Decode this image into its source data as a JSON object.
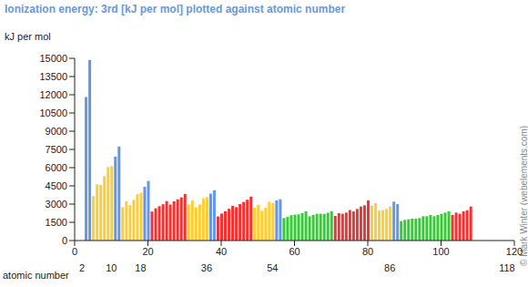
{
  "chart_data": {
    "type": "bar",
    "title": "Ionization energy: 3rd [kJ per mol] plotted against atomic number",
    "y_label": "kJ per mol",
    "x_label": "atomic number",
    "credit": "© Mark Winter (webelements.com)",
    "x": [
      3,
      4,
      5,
      6,
      7,
      8,
      9,
      10,
      11,
      12,
      13,
      14,
      15,
      16,
      17,
      18,
      19,
      20,
      21,
      22,
      23,
      24,
      25,
      26,
      27,
      28,
      29,
      30,
      31,
      32,
      33,
      34,
      35,
      36,
      37,
      38,
      39,
      40,
      41,
      42,
      43,
      44,
      45,
      46,
      47,
      48,
      49,
      50,
      51,
      52,
      53,
      54,
      55,
      56,
      57,
      58,
      59,
      60,
      61,
      62,
      63,
      64,
      65,
      66,
      67,
      68,
      69,
      70,
      71,
      72,
      73,
      74,
      75,
      76,
      77,
      78,
      79,
      80,
      81,
      82,
      83,
      84,
      85,
      86,
      87,
      88,
      89,
      90,
      91,
      92,
      93,
      94,
      95,
      96,
      97,
      98,
      99,
      100,
      101,
      102,
      103,
      104,
      105,
      106,
      107,
      108
    ],
    "values": [
      11815,
      14849,
      3660,
      4621,
      4578,
      5300,
      6050,
      6122,
      6910,
      7733,
      2745,
      3232,
      2912,
      3357,
      3822,
      3931,
      4420,
      4912,
      2389,
      2653,
      2828,
      2987,
      3248,
      2957,
      3232,
      3395,
      3555,
      3833,
      2963,
      3302,
      2735,
      2974,
      3470,
      3565,
      3860,
      4138,
      1980,
      2218,
      2416,
      2618,
      2850,
      2747,
      2997,
      3177,
      3361,
      3616,
      2704,
      2943,
      2440,
      2698,
      3180,
      3099,
      3300,
      3400,
      1850,
      1949,
      2086,
      2130,
      2150,
      2260,
      2404,
      1990,
      2114,
      2200,
      2204,
      2194,
      2285,
      2417,
      2022,
      2250,
      2200,
      2300,
      2510,
      2400,
      2600,
      2800,
      2900,
      3300,
      2878,
      3081,
      2466,
      2500,
      2600,
      2800,
      3200,
      3000,
      1600,
      1700,
      1750,
      1800,
      1800,
      1850,
      2000,
      2000,
      2100,
      2000,
      2100,
      2200,
      2300,
      2400,
      2100,
      2300,
      2200,
      2400,
      2500,
      2800
    ],
    "colors": [
      "#6495ed",
      "#6495ed",
      "#ffcc33",
      "#ffcc33",
      "#ffcc33",
      "#ffcc33",
      "#ffcc33",
      "#ffcc33",
      "#6495ed",
      "#6495ed",
      "#ffcc33",
      "#ffcc33",
      "#ffcc33",
      "#ffcc33",
      "#ffcc33",
      "#ffcc33",
      "#6495ed",
      "#6495ed",
      "#ee3333",
      "#ee3333",
      "#ee3333",
      "#ee3333",
      "#ee3333",
      "#ee3333",
      "#ee3333",
      "#ee3333",
      "#ee3333",
      "#ee3333",
      "#ffcc33",
      "#ffcc33",
      "#ffcc33",
      "#ffcc33",
      "#ffcc33",
      "#ffcc33",
      "#6495ed",
      "#6495ed",
      "#ee3333",
      "#ee3333",
      "#ee3333",
      "#ee3333",
      "#ee3333",
      "#ee3333",
      "#ee3333",
      "#ee3333",
      "#ee3333",
      "#ee3333",
      "#ffcc33",
      "#ffcc33",
      "#ffcc33",
      "#ffcc33",
      "#ffcc33",
      "#ffcc33",
      "#6495ed",
      "#6495ed",
      "#33cc33",
      "#33cc33",
      "#33cc33",
      "#33cc33",
      "#33cc33",
      "#33cc33",
      "#33cc33",
      "#33cc33",
      "#33cc33",
      "#33cc33",
      "#33cc33",
      "#33cc33",
      "#33cc33",
      "#33cc33",
      "#ee3333",
      "#ee3333",
      "#ee3333",
      "#ee3333",
      "#ee3333",
      "#ee3333",
      "#ee3333",
      "#ee3333",
      "#ee3333",
      "#ee3333",
      "#ffcc33",
      "#ffcc33",
      "#ffcc33",
      "#ffcc33",
      "#ffcc33",
      "#ffcc33",
      "#6495ed",
      "#6495ed",
      "#33cc33",
      "#33cc33",
      "#33cc33",
      "#33cc33",
      "#33cc33",
      "#33cc33",
      "#33cc33",
      "#33cc33",
      "#33cc33",
      "#33cc33",
      "#33cc33",
      "#33cc33",
      "#33cc33",
      "#33cc33",
      "#ee3333",
      "#ee3333",
      "#ee3333",
      "#ee3333",
      "#ee3333",
      "#ee3333"
    ],
    "xlim": [
      0,
      120
    ],
    "xticks": [
      0,
      2,
      10,
      18,
      20,
      36,
      40,
      54,
      60,
      80,
      86,
      100,
      118,
      120
    ],
    "ylim": [
      0,
      15000
    ],
    "yticks": [
      0,
      1500,
      3000,
      4500,
      6000,
      7500,
      9000,
      10500,
      12000,
      13500,
      15000
    ],
    "grid": false
  }
}
